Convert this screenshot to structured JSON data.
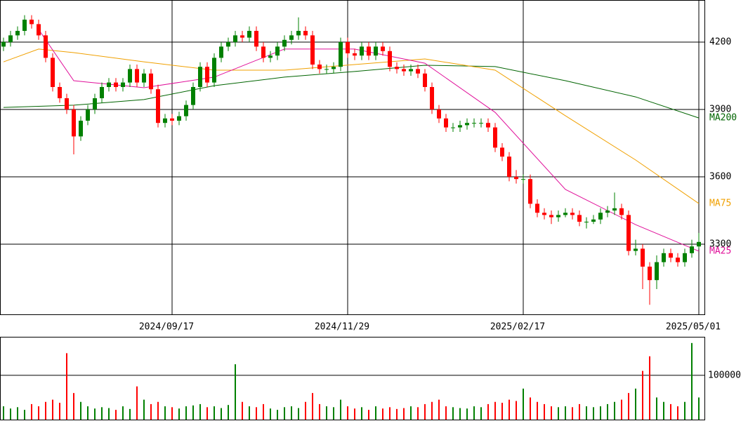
{
  "chart_data": [
    {
      "type": "candlestick",
      "categories": [
        null,
        null,
        null,
        null,
        null,
        null,
        null,
        null,
        null,
        null,
        null,
        null,
        null,
        null,
        null,
        null,
        null,
        null,
        null,
        null,
        null,
        null,
        null,
        null,
        "2024/09/17",
        null,
        null,
        null,
        null,
        null,
        null,
        null,
        null,
        null,
        null,
        null,
        null,
        null,
        null,
        null,
        null,
        null,
        null,
        null,
        null,
        null,
        null,
        null,
        null,
        "2024/11/29",
        null,
        null,
        null,
        null,
        null,
        null,
        null,
        null,
        null,
        null,
        null,
        null,
        null,
        null,
        null,
        null,
        null,
        null,
        null,
        null,
        null,
        null,
        null,
        null,
        "2025/02/17",
        null,
        null,
        null,
        null,
        null,
        null,
        null,
        null,
        null,
        null,
        null,
        null,
        null,
        null,
        null,
        null,
        null,
        null,
        null,
        null,
        null,
        null,
        null,
        null,
        "2025/05/01"
      ],
      "open": [
        4180,
        4200,
        4230,
        4250,
        4300,
        4280,
        4230,
        4130,
        4000,
        3950,
        3900,
        3780,
        3850,
        3900,
        3950,
        4000,
        4020,
        4000,
        4020,
        4080,
        4020,
        4060,
        3990,
        3840,
        3860,
        3850,
        3870,
        3920,
        4000,
        4090,
        4020,
        4130,
        4180,
        4200,
        4230,
        4220,
        4250,
        4180,
        4130,
        4140,
        4180,
        4210,
        4230,
        4250,
        4230,
        4100,
        4080,
        4080,
        4090,
        4200,
        4150,
        4140,
        4180,
        4140,
        4180,
        4160,
        4090,
        4080,
        4070,
        4080,
        4060,
        4000,
        3900,
        3860,
        3820,
        3820,
        3830,
        3840,
        3840,
        3840,
        3820,
        3730,
        3690,
        3600,
        3590,
        3590,
        3480,
        3440,
        3430,
        3420,
        3430,
        3440,
        3430,
        3400,
        3400,
        3410,
        3440,
        3450,
        3460,
        3430,
        3270,
        3280,
        3200,
        3140,
        3220,
        3260,
        3240,
        3220,
        3260,
        3290
      ],
      "high": [
        4220,
        4250,
        4270,
        4320,
        4320,
        4300,
        4250,
        4150,
        4020,
        3970,
        3920,
        3870,
        3920,
        3970,
        4020,
        4040,
        4040,
        4040,
        4100,
        4100,
        4080,
        4080,
        4010,
        3880,
        3880,
        3890,
        3940,
        4020,
        4110,
        4110,
        4150,
        4200,
        4220,
        4250,
        4250,
        4270,
        4270,
        4200,
        4160,
        4200,
        4230,
        4250,
        4310,
        4270,
        4250,
        4120,
        4100,
        4110,
        4220,
        4220,
        4170,
        4200,
        4200,
        4200,
        4200,
        4180,
        4110,
        4100,
        4100,
        4100,
        4080,
        4020,
        3920,
        3880,
        3840,
        3850,
        3860,
        3860,
        3860,
        3860,
        3840,
        3750,
        3710,
        3630,
        3610,
        3610,
        3500,
        3460,
        3450,
        3450,
        3460,
        3460,
        3450,
        3420,
        3430,
        3460,
        3470,
        3530,
        3480,
        3450,
        3320,
        3300,
        3220,
        3250,
        3280,
        3280,
        3260,
        3280,
        3320,
        3350
      ],
      "low": [
        4160,
        4180,
        4210,
        4230,
        4260,
        4210,
        4110,
        3980,
        3930,
        3880,
        3700,
        3760,
        3830,
        3880,
        3930,
        3980,
        3980,
        3980,
        4000,
        4000,
        4000,
        3970,
        3820,
        3820,
        3830,
        3830,
        3850,
        3900,
        3980,
        4000,
        4000,
        4110,
        4160,
        4180,
        4200,
        4200,
        4160,
        4110,
        4110,
        4120,
        4160,
        4190,
        4210,
        4210,
        4080,
        4060,
        4060,
        4060,
        4070,
        4130,
        4120,
        4120,
        4120,
        4120,
        4140,
        4070,
        4060,
        4050,
        4050,
        4040,
        3980,
        3880,
        3840,
        3800,
        3800,
        3800,
        3810,
        3820,
        3820,
        3800,
        3710,
        3670,
        3580,
        3570,
        3570,
        3460,
        3420,
        3410,
        3390,
        3400,
        3420,
        3410,
        3380,
        3370,
        3390,
        3390,
        3420,
        3430,
        3410,
        3250,
        3250,
        3100,
        3030,
        3100,
        3200,
        3220,
        3200,
        3200,
        3240,
        3280
      ],
      "close": [
        4200,
        4230,
        4250,
        4300,
        4280,
        4230,
        4130,
        4000,
        3950,
        3900,
        3780,
        3850,
        3900,
        3950,
        4000,
        4020,
        4000,
        4020,
        4080,
        4020,
        4060,
        3990,
        3840,
        3860,
        3850,
        3870,
        3920,
        4000,
        4090,
        4020,
        4130,
        4180,
        4200,
        4230,
        4220,
        4250,
        4180,
        4130,
        4140,
        4180,
        4210,
        4230,
        4250,
        4230,
        4100,
        4080,
        4080,
        4090,
        4200,
        4150,
        4140,
        4180,
        4140,
        4180,
        4160,
        4090,
        4080,
        4070,
        4080,
        4060,
        4000,
        3900,
        3860,
        3820,
        3820,
        3830,
        3840,
        3840,
        3840,
        3820,
        3730,
        3690,
        3600,
        3590,
        3590,
        3480,
        3440,
        3430,
        3420,
        3430,
        3440,
        3430,
        3400,
        3400,
        3410,
        3440,
        3450,
        3460,
        3430,
        3270,
        3280,
        3200,
        3140,
        3220,
        3260,
        3240,
        3220,
        3260,
        3290,
        3310
      ],
      "up_color": "#008000",
      "down_color": "#ff0000",
      "ylim": [
        2987.5,
        4387.5
      ],
      "yticks": [
        4200,
        3900,
        3600,
        3300
      ],
      "grid": true,
      "series": [
        {
          "name": "MA200",
          "color": "#006400",
          "x": [
            0,
            10,
            20,
            30,
            40,
            50,
            60,
            70,
            80,
            90,
            99
          ],
          "values": [
            3909,
            3919,
            3944,
            4006,
            4044,
            4069,
            4097,
            4091,
            4028,
            3956,
            3862
          ]
        },
        {
          "name": "MA75",
          "color": "#f0a000",
          "x": [
            0,
            5,
            10,
            20,
            30,
            40,
            50,
            60,
            70,
            80,
            90,
            99
          ],
          "values": [
            4112,
            4169,
            4153,
            4112,
            4075,
            4075,
            4100,
            4125,
            4075,
            3872,
            3675,
            3481
          ]
        },
        {
          "name": "MA25",
          "color": "#e0109a",
          "x": [
            5,
            10,
            20,
            30,
            40,
            50,
            60,
            70,
            80,
            90,
            99
          ],
          "values": [
            4256,
            4028,
            3997,
            4044,
            4169,
            4169,
            4106,
            3887,
            3544,
            3387,
            3269
          ]
        }
      ]
    },
    {
      "type": "bar",
      "values": [
        30000,
        25000,
        28000,
        22000,
        35000,
        30000,
        40000,
        45000,
        38000,
        150000,
        60000,
        40000,
        30000,
        25000,
        28000,
        26000,
        22000,
        30000,
        24000,
        75000,
        45000,
        35000,
        40000,
        30000,
        28000,
        25000,
        30000,
        32000,
        35000,
        28000,
        30000,
        26000,
        33000,
        125000,
        40000,
        30000,
        28000,
        35000,
        25000,
        22000,
        28000,
        30000,
        26000,
        40000,
        60000,
        35000,
        30000,
        28000,
        45000,
        30000,
        25000,
        28000,
        22000,
        30000,
        25000,
        28000,
        24000,
        26000,
        30000,
        28000,
        35000,
        40000,
        45000,
        30000,
        28000,
        26000,
        25000,
        30000,
        28000,
        35000,
        40000,
        38000,
        45000,
        42000,
        70000,
        50000,
        40000,
        35000,
        30000,
        28000,
        30000,
        28000,
        35000,
        30000,
        28000,
        30000,
        35000,
        40000,
        45000,
        60000,
        70000,
        110000,
        143000,
        50000,
        40000,
        35000,
        30000,
        40000,
        173000,
        50000
      ],
      "ylim": [
        0,
        187000
      ],
      "yticks": [
        100000
      ],
      "grid": true
    }
  ]
}
